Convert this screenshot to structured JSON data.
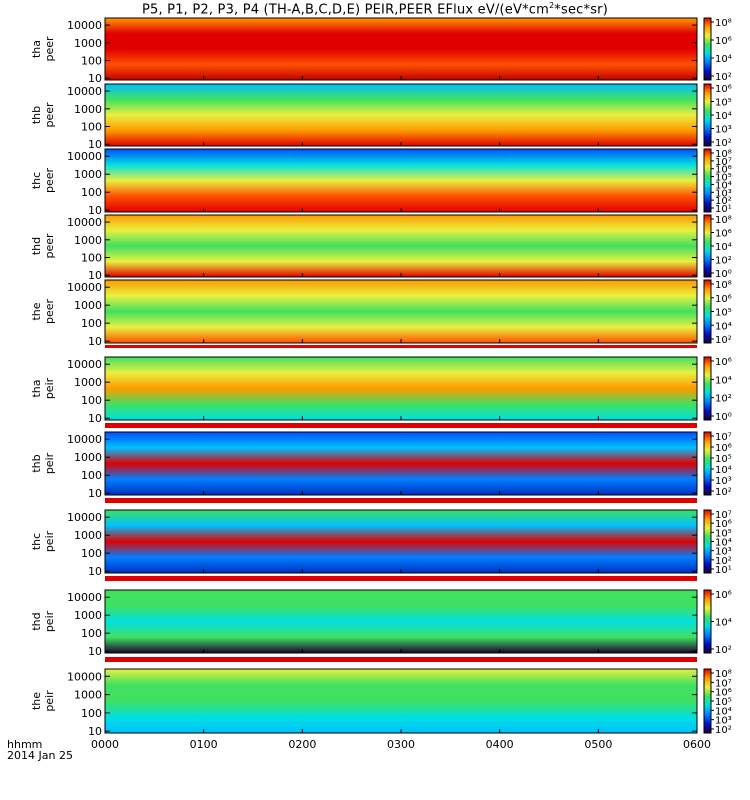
{
  "title_parts": {
    "pre": "P5, P1, P2, P3, P4 (TH-A,B,C,D,E) PEIR,PEER EFlux eV/(eV*cm",
    "sup": "2",
    "post": "*sec*sr)"
  },
  "footer": {
    "time_format": "hhmm",
    "date": "2014 Jan 25"
  },
  "chart_data": {
    "type": "heatmap",
    "x_ticks": [
      "0000",
      "0100",
      "0200",
      "0300",
      "0400",
      "0500",
      "0600"
    ],
    "x_range_hours": [
      0,
      6
    ],
    "y_scale": "log",
    "colormap": [
      "#1a0030",
      "#0010c8",
      "#0080ff",
      "#00e0e0",
      "#40e060",
      "#e8f040",
      "#ff9a00",
      "#e00000"
    ],
    "panels": [
      {
        "probe": "tha",
        "species": "peer",
        "yticks": [
          "10",
          "100",
          "1000",
          "10000"
        ],
        "cbar_ticks": [
          "10²",
          "10⁴",
          "10⁶",
          "10⁸"
        ]
      },
      {
        "probe": "thb",
        "species": "peer",
        "yticks": [
          "10",
          "100",
          "1000",
          "10000"
        ],
        "cbar_ticks": [
          "10²",
          "10³",
          "10⁴",
          "10⁵",
          "10⁶"
        ]
      },
      {
        "probe": "thc",
        "species": "peer",
        "yticks": [
          "10",
          "100",
          "1000",
          "10000"
        ],
        "cbar_ticks": [
          "10¹",
          "10²",
          "10³",
          "10⁴",
          "10⁵",
          "10⁶",
          "10⁷",
          "10⁸"
        ]
      },
      {
        "probe": "thd",
        "species": "peer",
        "yticks": [
          "10",
          "100",
          "1000",
          "10000"
        ],
        "cbar_ticks": [
          "10⁰",
          "10²",
          "10⁴",
          "10⁶",
          "10⁸"
        ]
      },
      {
        "probe": "the",
        "species": "peer",
        "yticks": [
          "10",
          "100",
          "1000",
          "10000"
        ],
        "cbar_ticks": [
          "10²",
          "10⁴",
          "10⁵",
          "10⁶",
          "10⁸"
        ]
      },
      {
        "probe": "tha",
        "species": "peir",
        "yticks": [
          "10",
          "100",
          "1000",
          "10000"
        ],
        "cbar_ticks": [
          "10⁰",
          "10²",
          "10⁴",
          "10⁶"
        ]
      },
      {
        "probe": "thb",
        "species": "peir",
        "yticks": [
          "10",
          "100",
          "1000",
          "10000"
        ],
        "cbar_ticks": [
          "10²",
          "10³",
          "10⁴",
          "10⁵",
          "10⁶",
          "10⁷"
        ]
      },
      {
        "probe": "thc",
        "species": "peir",
        "yticks": [
          "10",
          "100",
          "1000",
          "10000"
        ],
        "cbar_ticks": [
          "10¹",
          "10²",
          "10³",
          "10⁴",
          "10⁵",
          "10⁶",
          "10⁷"
        ]
      },
      {
        "probe": "thd",
        "species": "peir",
        "yticks": [
          "10",
          "100",
          "1000",
          "10000"
        ],
        "cbar_ticks": [
          "10²",
          "10⁴",
          "10⁶"
        ]
      },
      {
        "probe": "the",
        "species": "peir",
        "yticks": [
          "10",
          "100",
          "1000",
          "10000"
        ],
        "cbar_ticks": [
          "10²",
          "10³",
          "10⁴",
          "10⁵",
          "10⁶",
          "10⁷",
          "10⁸"
        ]
      }
    ]
  }
}
